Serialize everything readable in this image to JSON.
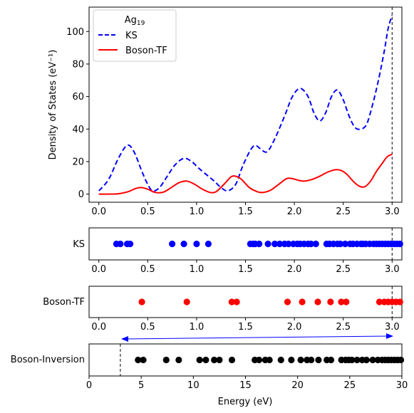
{
  "chart_data": [
    {
      "type": "line",
      "ylabel": "Density of States (eV⁻¹)",
      "legend": {
        "title_base": "Ag",
        "title_sub": "19",
        "placement": "top-left"
      },
      "xlim": [
        -0.1,
        3.1
      ],
      "ylim": [
        -5,
        115
      ],
      "xticks": [
        "0.0",
        "0.5",
        "1.0",
        "1.5",
        "2.0",
        "2.5",
        "3.0"
      ],
      "yticks": [
        "0",
        "20",
        "40",
        "60",
        "80",
        "100"
      ],
      "vline_x": 3.0,
      "series": [
        {
          "name": "KS",
          "color": "#0000ff",
          "dash": true,
          "points": [
            [
              0,
              2
            ],
            [
              0.1,
              9
            ],
            [
              0.2,
              22
            ],
            [
              0.29,
              30
            ],
            [
              0.36,
              26
            ],
            [
              0.44,
              14
            ],
            [
              0.5,
              6
            ],
            [
              0.55,
              2
            ],
            [
              0.62,
              4
            ],
            [
              0.7,
              11
            ],
            [
              0.78,
              18
            ],
            [
              0.87,
              22
            ],
            [
              0.95,
              20
            ],
            [
              1.02,
              16
            ],
            [
              1.1,
              12
            ],
            [
              1.18,
              8
            ],
            [
              1.25,
              4
            ],
            [
              1.32,
              2
            ],
            [
              1.4,
              6
            ],
            [
              1.47,
              17
            ],
            [
              1.55,
              27
            ],
            [
              1.6,
              30
            ],
            [
              1.65,
              28
            ],
            [
              1.72,
              26
            ],
            [
              1.8,
              34
            ],
            [
              1.9,
              48
            ],
            [
              1.98,
              60
            ],
            [
              2.06,
              65
            ],
            [
              2.14,
              60
            ],
            [
              2.2,
              50
            ],
            [
              2.26,
              45
            ],
            [
              2.32,
              50
            ],
            [
              2.38,
              60
            ],
            [
              2.44,
              64
            ],
            [
              2.5,
              58
            ],
            [
              2.56,
              48
            ],
            [
              2.62,
              41
            ],
            [
              2.68,
              40
            ],
            [
              2.74,
              43
            ],
            [
              2.8,
              55
            ],
            [
              2.86,
              70
            ],
            [
              2.92,
              88
            ],
            [
              2.96,
              102
            ],
            [
              3.0,
              110
            ]
          ]
        },
        {
          "name": "Boson-TF",
          "color": "#ff0000",
          "dash": false,
          "points": [
            [
              0,
              0
            ],
            [
              0.1,
              0
            ],
            [
              0.2,
              0.2
            ],
            [
              0.3,
              1.5
            ],
            [
              0.38,
              3.5
            ],
            [
              0.44,
              4
            ],
            [
              0.5,
              3
            ],
            [
              0.58,
              1
            ],
            [
              0.66,
              1.2
            ],
            [
              0.74,
              4
            ],
            [
              0.82,
              7
            ],
            [
              0.9,
              8
            ],
            [
              0.98,
              6
            ],
            [
              1.06,
              3
            ],
            [
              1.14,
              1
            ],
            [
              1.2,
              1.5
            ],
            [
              1.28,
              6
            ],
            [
              1.35,
              10.5
            ],
            [
              1.4,
              11
            ],
            [
              1.46,
              9
            ],
            [
              1.54,
              4
            ],
            [
              1.62,
              1.5
            ],
            [
              1.68,
              1
            ],
            [
              1.76,
              2.5
            ],
            [
              1.84,
              6
            ],
            [
              1.92,
              9.5
            ],
            [
              1.98,
              9.5
            ],
            [
              2.04,
              8.5
            ],
            [
              2.1,
              8
            ],
            [
              2.18,
              9
            ],
            [
              2.26,
              11
            ],
            [
              2.34,
              13.5
            ],
            [
              2.42,
              15
            ],
            [
              2.48,
              14.5
            ],
            [
              2.54,
              12
            ],
            [
              2.6,
              8
            ],
            [
              2.66,
              5
            ],
            [
              2.72,
              4.5
            ],
            [
              2.78,
              8
            ],
            [
              2.84,
              14
            ],
            [
              2.9,
              19
            ],
            [
              2.95,
              23
            ],
            [
              3.0,
              24.5
            ]
          ]
        }
      ]
    },
    {
      "type": "scatter",
      "ylabel": "KS",
      "color": "#0000ff",
      "xlim": [
        -0.1,
        3.1
      ],
      "xticks": [
        "0.0",
        "0.5",
        "1.0",
        "1.5",
        "2.0",
        "2.5",
        "3.0"
      ],
      "vline_x": 3.0,
      "x": [
        0.18,
        0.22,
        0.29,
        0.32,
        0.75,
        0.87,
        1.0,
        1.12,
        1.55,
        1.58,
        1.6,
        1.64,
        1.73,
        1.8,
        1.85,
        1.9,
        1.94,
        1.99,
        2.03,
        2.06,
        2.1,
        2.14,
        2.17,
        2.22,
        2.33,
        2.36,
        2.4,
        2.44,
        2.47,
        2.52,
        2.57,
        2.6,
        2.64,
        2.68,
        2.7,
        2.73,
        2.77,
        2.81,
        2.84,
        2.87,
        2.9,
        2.93,
        2.96,
        2.99,
        3.02,
        3.05,
        3.08
      ]
    },
    {
      "type": "scatter",
      "ylabel": "Boson-TF",
      "color": "#ff0000",
      "xlim": [
        -0.1,
        3.1
      ],
      "xticks": [
        "0.0",
        "0.5",
        "1.0",
        "1.5",
        "2.0",
        "2.5",
        "3.0"
      ],
      "vline_x": 3.0,
      "x": [
        0.44,
        0.9,
        1.36,
        1.41,
        1.93,
        2.08,
        2.24,
        2.37,
        2.48,
        2.53,
        2.87,
        2.92,
        2.96,
        3.0,
        3.04,
        3.08
      ]
    },
    {
      "type": "scatter",
      "ylabel": "Boson-Inversion",
      "xlabel": "Energy (eV)",
      "color": "#000000",
      "xlim": [
        0,
        30
      ],
      "xticks": [
        "0",
        "5",
        "10",
        "15",
        "20",
        "25",
        "30"
      ],
      "vline_x": 3.0,
      "x": [
        4.7,
        5.2,
        7.4,
        8.6,
        10.6,
        11.2,
        12.0,
        12.5,
        13.7,
        15.9,
        16.3,
        16.9,
        17.3,
        18.4,
        19.4,
        20.3,
        20.9,
        21.3,
        22.0,
        22.8,
        23.2,
        24.2,
        24.6,
        24.9,
        25.2,
        25.7,
        26.2,
        26.6,
        27.2,
        27.7,
        28.1,
        28.4,
        28.7,
        29.0,
        29.3,
        29.6,
        29.9
      ]
    }
  ]
}
